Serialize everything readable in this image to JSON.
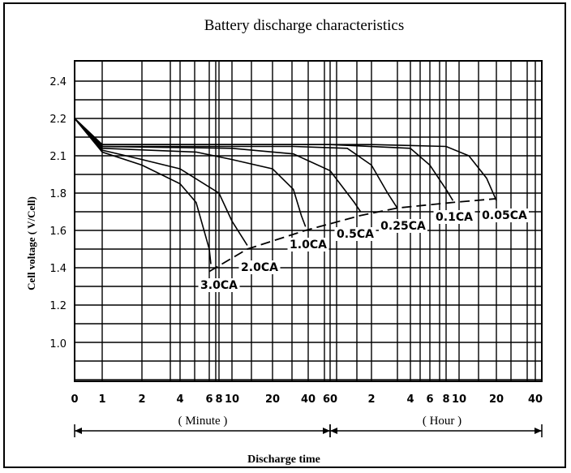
{
  "chart_data": {
    "type": "line",
    "title": "Battery discharge characteristics",
    "ylabel": "Cell voltage ( V/Cell)",
    "xlabel": "Discharge time",
    "ylim": [
      0.8,
      2.5
    ],
    "y_ticks": [
      "2.4",
      "2.2",
      "2.1",
      "1.8",
      "1.6",
      "1.4",
      "1.2",
      "1.0"
    ],
    "x_ticks": [
      "0",
      "1",
      "2",
      "4",
      "6",
      "8",
      "10",
      "20",
      "40",
      "60",
      "2",
      "4",
      "6",
      "8",
      "10",
      "20",
      "40"
    ],
    "x_groups": [
      {
        "label": "( Minute )",
        "range": [
          0,
          60
        ]
      },
      {
        "label": "( Hour )",
        "range": [
          60,
          2400
        ]
      }
    ],
    "x_scale": "log-like, minutes then hours",
    "grid": true,
    "series": [
      {
        "name": "3.0CA",
        "points": [
          [
            0,
            2.2
          ],
          [
            1,
            2.02
          ],
          [
            2,
            1.95
          ],
          [
            4,
            1.85
          ],
          [
            5,
            1.75
          ],
          [
            6,
            1.5
          ],
          [
            6.3,
            1.42
          ]
        ]
      },
      {
        "name": "2.0CA",
        "points": [
          [
            0,
            2.2
          ],
          [
            1,
            2.03
          ],
          [
            2,
            1.98
          ],
          [
            4,
            1.93
          ],
          [
            8,
            1.8
          ],
          [
            10,
            1.65
          ],
          [
            13,
            1.52
          ]
        ]
      },
      {
        "name": "1.0CA",
        "points": [
          [
            0,
            2.2
          ],
          [
            1,
            2.04
          ],
          [
            5,
            2.02
          ],
          [
            10,
            1.98
          ],
          [
            20,
            1.93
          ],
          [
            30,
            1.82
          ],
          [
            35,
            1.68
          ],
          [
            38,
            1.62
          ]
        ]
      },
      {
        "name": "0.5CA",
        "points": [
          [
            0,
            2.2
          ],
          [
            1,
            2.05
          ],
          [
            10,
            2.04
          ],
          [
            30,
            2.01
          ],
          [
            60,
            1.92
          ],
          [
            90,
            1.75
          ],
          [
            100,
            1.7
          ]
        ]
      },
      {
        "name": "0.25CA",
        "points": [
          [
            0,
            2.2
          ],
          [
            1,
            2.05
          ],
          [
            30,
            2.05
          ],
          [
            80,
            2.04
          ],
          [
            120,
            1.95
          ],
          [
            160,
            1.8
          ],
          [
            190,
            1.72
          ]
        ]
      },
      {
        "name": "0.1CA",
        "points": [
          [
            0,
            2.2
          ],
          [
            1,
            2.06
          ],
          [
            60,
            2.06
          ],
          [
            240,
            2.04
          ],
          [
            360,
            1.95
          ],
          [
            480,
            1.82
          ],
          [
            540,
            1.76
          ]
        ]
      },
      {
        "name": "0.05CA",
        "points": [
          [
            0,
            2.2
          ],
          [
            1,
            2.06
          ],
          [
            120,
            2.06
          ],
          [
            480,
            2.05
          ],
          [
            720,
            2.0
          ],
          [
            1000,
            1.88
          ],
          [
            1200,
            1.76
          ]
        ]
      }
    ],
    "end_voltage_line": [
      [
        6,
        1.38
      ],
      [
        13,
        1.5
      ],
      [
        38,
        1.6
      ],
      [
        100,
        1.68
      ],
      [
        190,
        1.72
      ],
      [
        540,
        1.75
      ],
      [
        1200,
        1.77
      ]
    ]
  }
}
